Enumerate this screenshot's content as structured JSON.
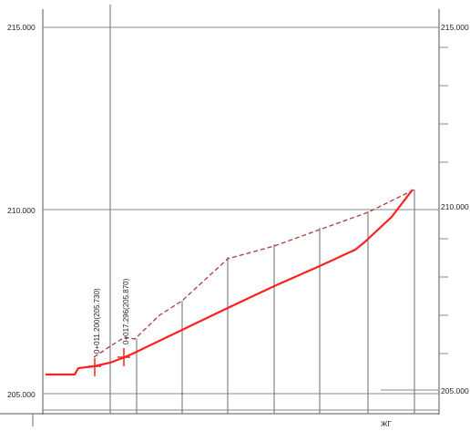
{
  "profile": {
    "elevation_labels_left": [
      "215.000",
      "210.000",
      "205.000"
    ],
    "elevation_labels_right": [
      "215.000",
      "210.000",
      "205.000"
    ],
    "station_annotations": [
      "0+011.200(205.730)",
      "0+017.296(205.870)"
    ],
    "corner_mark": "ЖГ",
    "colors": {
      "design_line": "#ff2020",
      "ground_line": "#b03a3a",
      "grid": "#8a8a8a",
      "frame": "#555555"
    }
  }
}
